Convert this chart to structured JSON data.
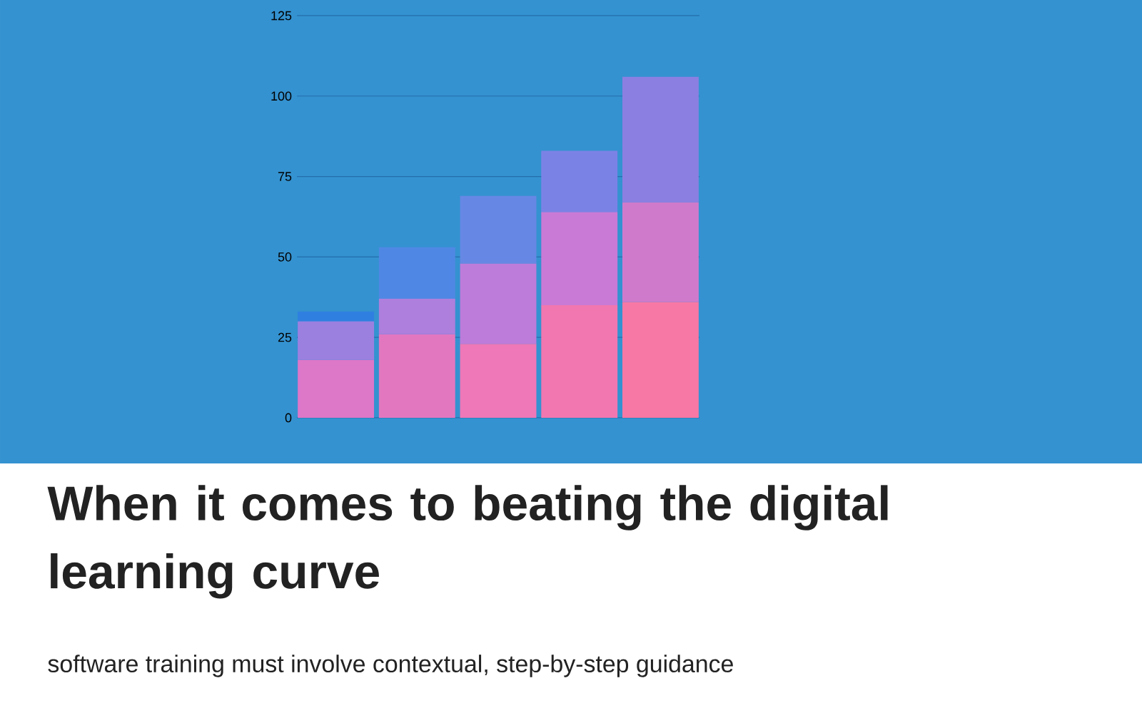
{
  "chart_data": {
    "type": "bar",
    "stacked": true,
    "title": "When it comes to beating the digital learning curve",
    "subtitle": "software training must involve contextual, step-by-step guidance",
    "categories": [
      null,
      null,
      null,
      null,
      null
    ],
    "series": [
      {
        "colors": [
          "#dd77c8",
          "#e277c0",
          "#ee78b8",
          "#f277b0",
          "#f778a4"
        ],
        "values": [
          18,
          26,
          23,
          35,
          36
        ]
      },
      {
        "colors": [
          "#9b80e0",
          "#ae7fdd",
          "#bd7cda",
          "#c97ad6",
          "#d07acc"
        ],
        "values": [
          12,
          11,
          25,
          29,
          31
        ]
      },
      {
        "colors": [
          "#2f7fe0",
          "#4f88e4",
          "#6688e4",
          "#7b82e6",
          "#8c7fe2"
        ],
        "values": [
          3,
          16,
          21,
          19,
          39
        ]
      }
    ],
    "ylim": [
      0,
      125
    ],
    "yticks": [
      0,
      25,
      50,
      75,
      100,
      125
    ],
    "grid": "y"
  }
}
